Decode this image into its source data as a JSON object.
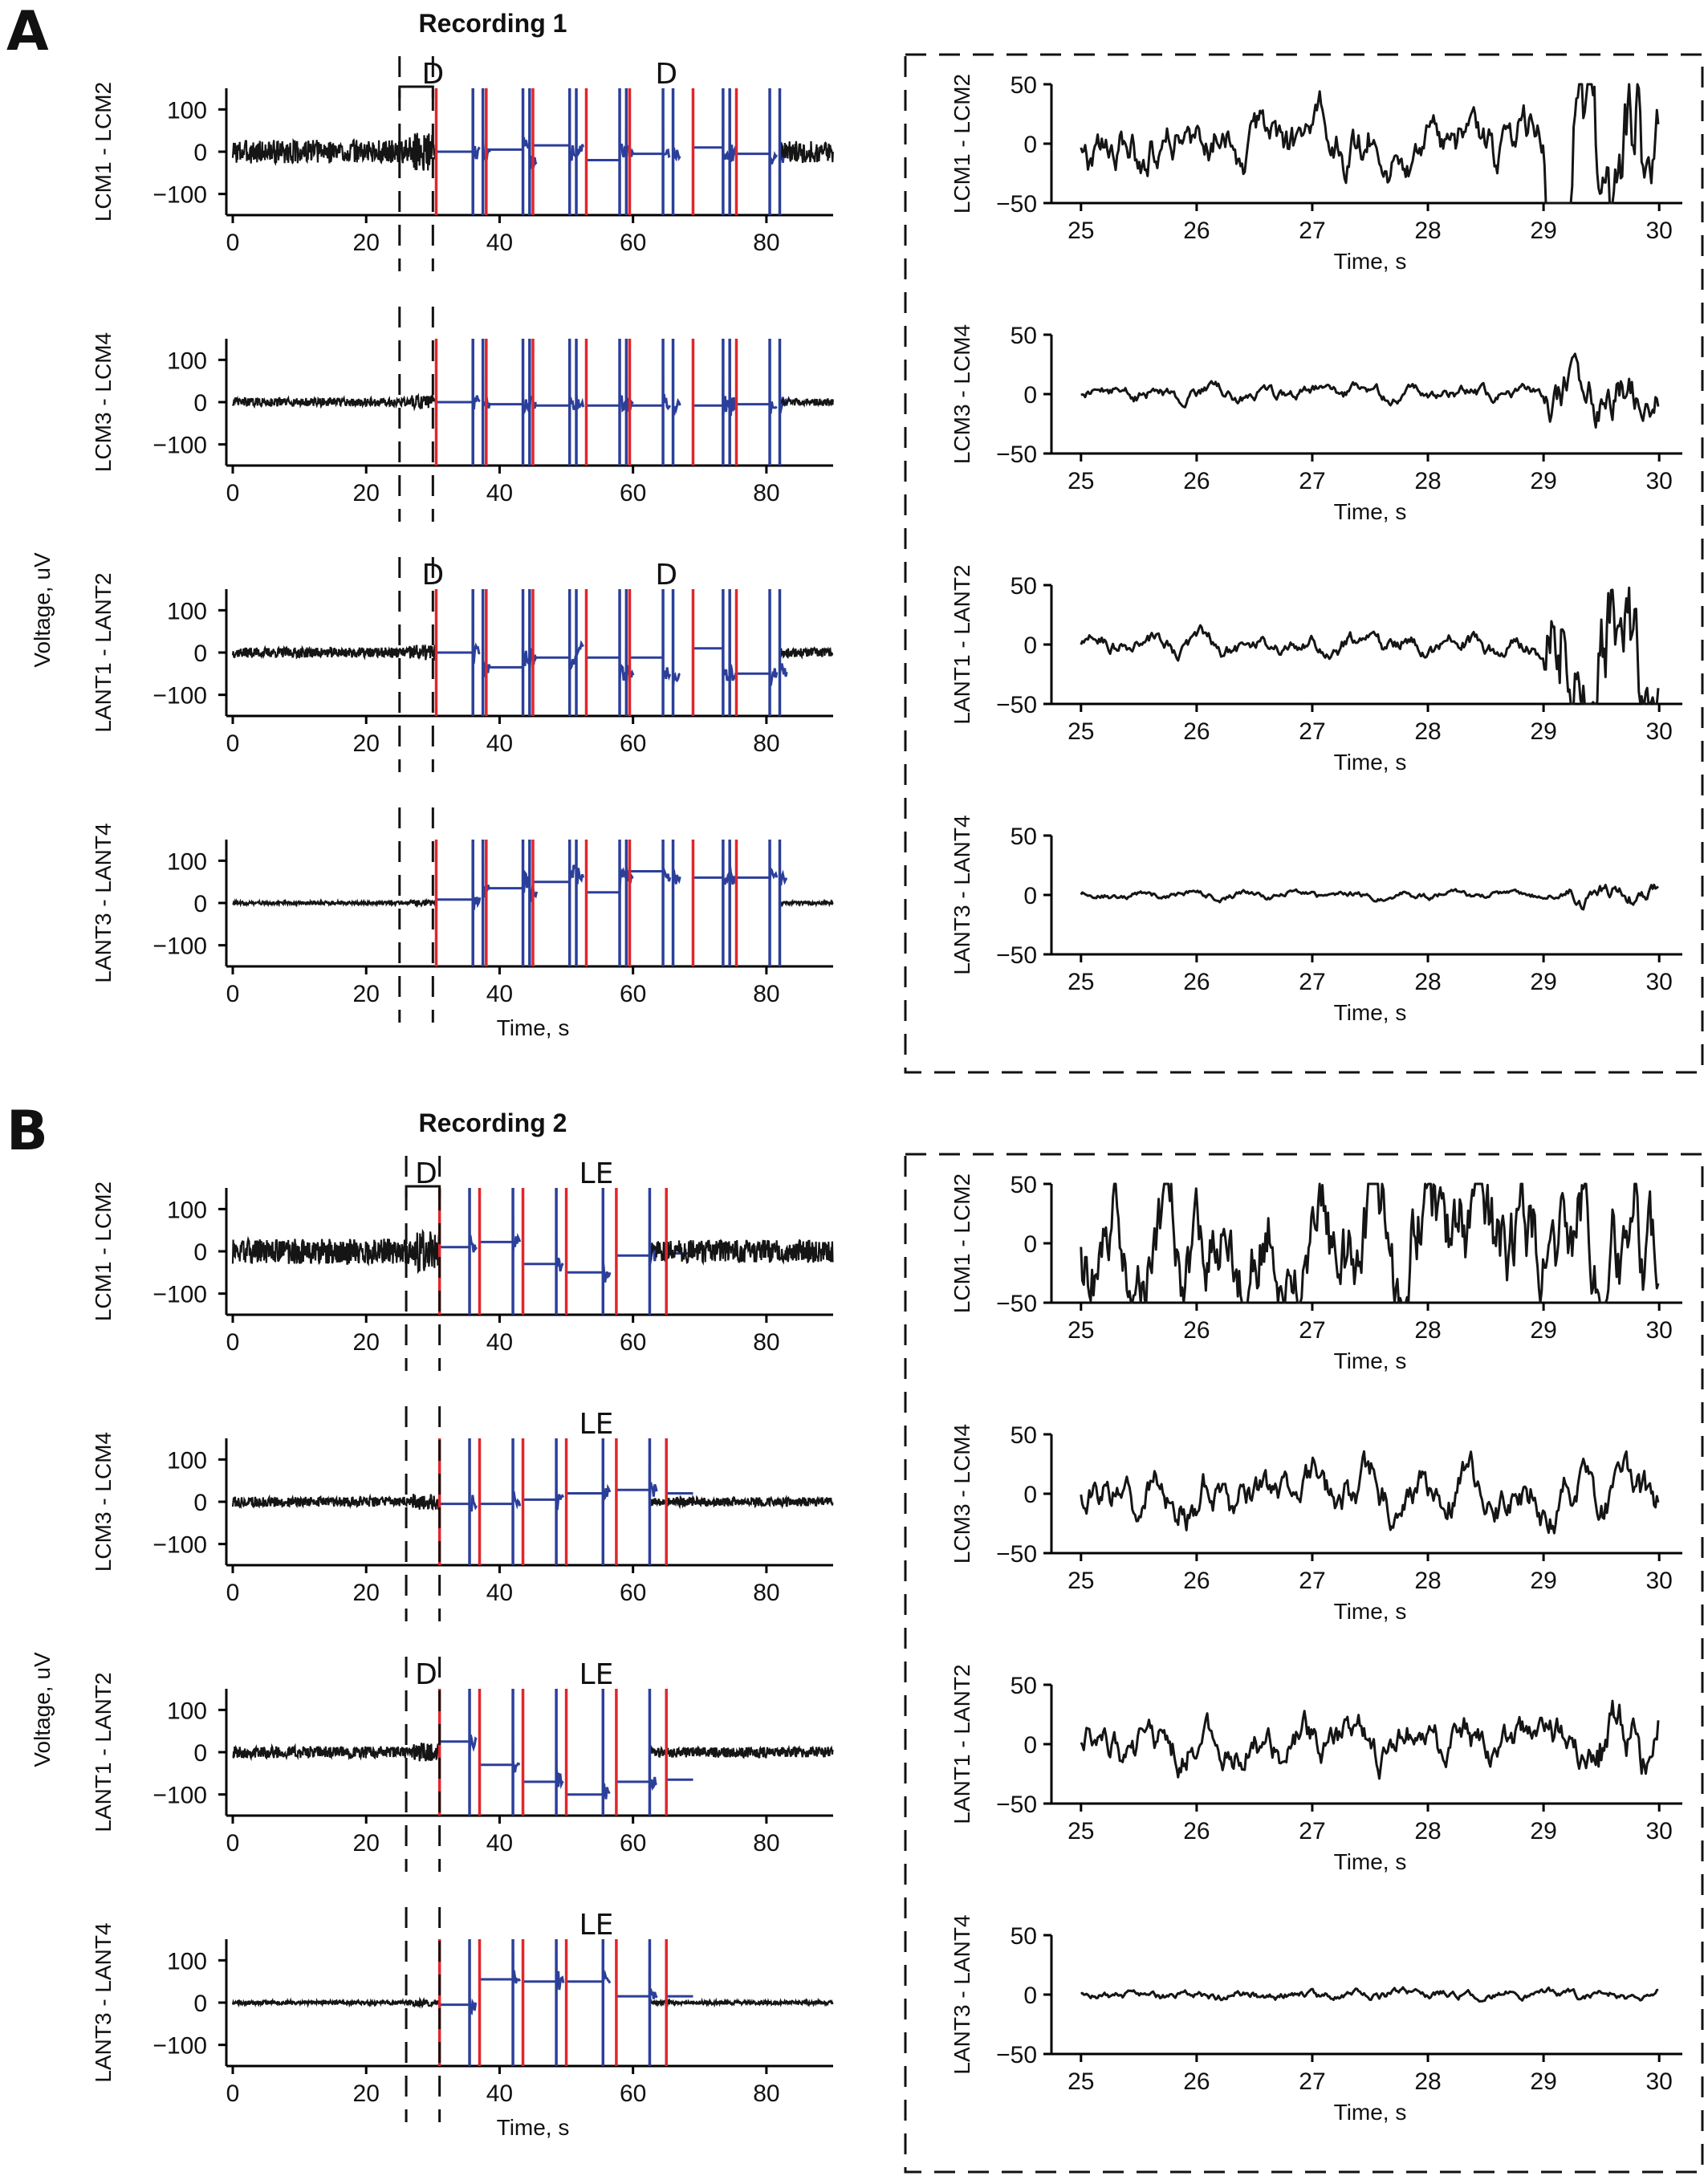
{
  "figure": {
    "panel_letters": [
      "A",
      "B"
    ],
    "recording_titles": [
      "Recording 1",
      "Recording 2"
    ],
    "shared_ylabel": "Voltage, uV",
    "xlabel": "Time, s"
  },
  "colors": {
    "trace": "#151515",
    "stim_block": "#2b3f9a",
    "red_marker": "#e0262b"
  },
  "chart_data": [
    {
      "type": "line",
      "panel": "A",
      "recording": "Recording 1",
      "xlim": [
        0,
        90
      ],
      "ylim": [
        -150,
        150
      ],
      "xticks": [
        "0",
        "20",
        "40",
        "60",
        "80"
      ],
      "yticks": [
        "100",
        "0",
        "−100"
      ],
      "xlabel": "Time, s",
      "ylabel": "Voltage, uV",
      "zoom_window": [
        25,
        30
      ],
      "red_markers_s": [
        30.5,
        38,
        45,
        53,
        59.5,
        69,
        75.5
      ],
      "blue_markers_s": [
        36,
        37.5,
        43.5,
        44.5,
        50.5,
        51.5,
        58,
        59,
        64.5,
        66,
        73.5,
        74.5,
        80.5,
        82
      ],
      "channels": [
        {
          "label": "LCM1 - LCM2",
          "noise_amp_uV": 28,
          "annotations": [
            {
              "text": "D",
              "x_s": 30
            },
            {
              "text": "D",
              "x_s": 65
            }
          ],
          "bracket_s": [
            25,
            30
          ],
          "block_levels_uV": [
            0,
            5,
            15,
            -20,
            -5,
            10,
            -5
          ]
        },
        {
          "label": "LCM3 - LCM4",
          "noise_amp_uV": 10,
          "annotations": [],
          "block_levels_uV": [
            0,
            -5,
            -8,
            -8,
            -8,
            -8,
            -5
          ]
        },
        {
          "label": "LANT1 - LANT2",
          "noise_amp_uV": 12,
          "annotations": [
            {
              "text": "D",
              "x_s": 30
            },
            {
              "text": "D",
              "x_s": 65
            }
          ],
          "block_levels_uV": [
            0,
            -35,
            -12,
            -12,
            -12,
            10,
            -50
          ]
        },
        {
          "label": "LANT3 - LANT4",
          "noise_amp_uV": 4,
          "annotations": [],
          "block_levels_uV": [
            8,
            35,
            50,
            25,
            75,
            60,
            60
          ]
        }
      ]
    },
    {
      "type": "line",
      "panel": "A",
      "recording": "Recording 1",
      "zoom": true,
      "xlim": [
        24.8,
        30.2
      ],
      "ylim": [
        -50,
        50
      ],
      "xticks": [
        "25",
        "26",
        "27",
        "28",
        "29",
        "30"
      ],
      "yticks": [
        "50",
        "0",
        "−50"
      ],
      "xlabel": "Time, s",
      "channels": [
        {
          "label": "LCM1 - LCM2",
          "amp_uV": 22,
          "burst_start_s": 29,
          "burst_amp_uV": 70
        },
        {
          "label": "LCM3 - LCM4",
          "amp_uV": 6,
          "burst_start_s": 29,
          "burst_amp_uV": 22
        },
        {
          "label": "LANT1 - LANT2",
          "amp_uV": 8,
          "burst_start_s": 29,
          "burst_amp_uV": 60
        },
        {
          "label": "LANT3 - LANT4",
          "amp_uV": 3,
          "burst_start_s": 29.2,
          "burst_amp_uV": 8
        }
      ]
    },
    {
      "type": "line",
      "panel": "B",
      "recording": "Recording 2",
      "xlim": [
        0,
        90
      ],
      "ylim": [
        -150,
        150
      ],
      "xticks": [
        "0",
        "20",
        "40",
        "60",
        "80"
      ],
      "yticks": [
        "100",
        "0",
        "−100"
      ],
      "xlabel": "Time, s",
      "ylabel": "Voltage, uV",
      "zoom_window": [
        26,
        31
      ],
      "red_markers_s": [
        31,
        37,
        43.5,
        50,
        57.5,
        65
      ],
      "blue_markers_s": [
        35.5,
        42,
        48.5,
        55.5,
        62.5
      ],
      "channels": [
        {
          "label": "LCM1 - LCM2",
          "noise_amp_uV": 30,
          "annotations": [
            {
              "text": "D",
              "x_s": 29
            },
            {
              "text": "LE",
              "x_s": 54.5
            }
          ],
          "bracket_s": [
            26,
            31
          ],
          "block_levels_uV": [
            10,
            22,
            -30,
            -50,
            -10,
            -5
          ]
        },
        {
          "label": "LCM3 - LCM4",
          "noise_amp_uV": 12,
          "annotations": [
            {
              "text": "LE",
              "x_s": 54.5
            }
          ],
          "block_levels_uV": [
            -5,
            -5,
            5,
            20,
            28,
            20
          ]
        },
        {
          "label": "LANT1 - LANT2",
          "noise_amp_uV": 14,
          "annotations": [
            {
              "text": "D",
              "x_s": 29
            },
            {
              "text": "LE",
              "x_s": 54.5
            }
          ],
          "block_levels_uV": [
            25,
            -30,
            -70,
            -100,
            -70,
            -65
          ]
        },
        {
          "label": "LANT3 - LANT4",
          "noise_amp_uV": 5,
          "annotations": [
            {
              "text": "LE",
              "x_s": 54.5
            }
          ],
          "block_levels_uV": [
            -5,
            55,
            50,
            50,
            15,
            15
          ]
        }
      ]
    },
    {
      "type": "line",
      "panel": "B",
      "recording": "Recording 2",
      "zoom": true,
      "xlim": [
        24.8,
        30.2
      ],
      "ylim": [
        -50,
        50
      ],
      "xticks": [
        "25",
        "26",
        "27",
        "28",
        "29",
        "30"
      ],
      "yticks": [
        "50",
        "0",
        "−50"
      ],
      "xlabel": "Time, s",
      "channels": [
        {
          "label": "LCM1 - LCM2",
          "amp_uV": 45,
          "burst_start_s": 26.7,
          "burst_amp_uV": 55
        },
        {
          "label": "LCM3 - LCM4",
          "amp_uV": 20,
          "burst_start_s": 30,
          "burst_amp_uV": 20
        },
        {
          "label": "LANT1 - LANT2",
          "amp_uV": 18,
          "burst_start_s": 29.4,
          "burst_amp_uV": 28
        },
        {
          "label": "LANT3 - LANT4",
          "amp_uV": 4,
          "burst_start_s": 30,
          "burst_amp_uV": 4
        }
      ]
    }
  ]
}
